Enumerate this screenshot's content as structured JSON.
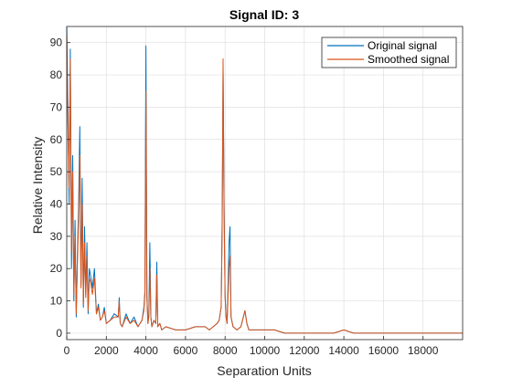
{
  "chart_data": {
    "type": "line",
    "title": "Signal ID: 3",
    "xlabel": "Separation Units",
    "ylabel": "Relative Intensity",
    "xlim": [
      0,
      20000
    ],
    "ylim": [
      -2,
      95
    ],
    "x_ticks": [
      0,
      2000,
      4000,
      6000,
      8000,
      10000,
      12000,
      14000,
      16000,
      18000
    ],
    "y_ticks": [
      0,
      10,
      20,
      30,
      40,
      50,
      60,
      70,
      80,
      90
    ],
    "x_tick_labels": [
      "0",
      "2000",
      "4000",
      "6000",
      "8000",
      "10000",
      "12000",
      "14000",
      "16000",
      "18000"
    ],
    "y_tick_labels": [
      "0",
      "10",
      "20",
      "30",
      "40",
      "50",
      "60",
      "70",
      "80",
      "90"
    ],
    "grid": true,
    "legend_position": "top-right",
    "series": [
      {
        "name": "Original signal",
        "color": "#0072BD",
        "x": [
          0,
          60,
          120,
          180,
          240,
          300,
          360,
          420,
          480,
          540,
          600,
          660,
          720,
          780,
          840,
          900,
          960,
          1020,
          1080,
          1140,
          1200,
          1300,
          1400,
          1500,
          1600,
          1700,
          1800,
          1900,
          2000,
          2200,
          2400,
          2600,
          2650,
          2700,
          2800,
          3000,
          3200,
          3400,
          3600,
          3800,
          3900,
          3950,
          4000,
          4050,
          4100,
          4150,
          4200,
          4250,
          4300,
          4400,
          4500,
          4550,
          4600,
          4700,
          4800,
          5000,
          5500,
          6000,
          6500,
          7000,
          7200,
          7400,
          7600,
          7700,
          7800,
          7850,
          7900,
          7950,
          8000,
          8050,
          8100,
          8200,
          8250,
          8300,
          8400,
          8600,
          8800,
          9000,
          9100,
          9200,
          9300,
          9500,
          10000,
          10500,
          11000,
          12000,
          13000,
          13500,
          14000,
          14500,
          15000,
          15500,
          16000,
          16500,
          17000,
          18000,
          19000,
          20000
        ],
        "values": [
          95,
          70,
          40,
          88,
          20,
          55,
          10,
          35,
          5,
          25,
          40,
          64,
          15,
          48,
          8,
          33,
          12,
          28,
          6,
          20,
          18,
          14,
          20,
          6,
          9,
          4,
          5,
          8,
          3,
          4,
          6,
          5,
          11,
          3,
          2,
          6,
          3,
          5,
          2,
          4,
          8,
          13,
          89,
          12,
          3,
          6,
          28,
          5,
          2,
          4,
          3,
          22,
          2,
          3,
          1,
          2,
          1,
          1,
          2,
          2,
          1,
          2,
          3,
          4,
          8,
          35,
          82,
          40,
          12,
          5,
          3,
          28,
          33,
          5,
          2,
          1,
          2,
          7,
          3,
          1,
          1,
          1,
          1,
          1,
          0,
          0,
          0,
          0,
          1,
          0,
          0,
          0,
          0,
          0,
          0,
          0,
          0,
          0
        ],
        "values_note": "approximate"
      },
      {
        "name": "Smoothed signal",
        "color": "#D95319",
        "x": [
          0,
          60,
          120,
          180,
          240,
          300,
          360,
          420,
          480,
          540,
          600,
          660,
          720,
          780,
          840,
          900,
          960,
          1020,
          1080,
          1140,
          1200,
          1300,
          1400,
          1500,
          1600,
          1700,
          1800,
          1900,
          2000,
          2200,
          2400,
          2600,
          2650,
          2700,
          2800,
          3000,
          3200,
          3400,
          3600,
          3800,
          3900,
          3950,
          4000,
          4050,
          4100,
          4150,
          4200,
          4250,
          4300,
          4400,
          4500,
          4550,
          4600,
          4700,
          4800,
          5000,
          5500,
          6000,
          6500,
          7000,
          7200,
          7400,
          7600,
          7700,
          7800,
          7850,
          7900,
          7950,
          8000,
          8050,
          8100,
          8200,
          8250,
          8300,
          8400,
          8600,
          8800,
          9000,
          9100,
          9200,
          9300,
          9500,
          10000,
          10500,
          11000,
          12000,
          13000,
          13500,
          14000,
          14500,
          15000,
          15500,
          16000,
          16500,
          17000,
          18000,
          19000,
          20000
        ],
        "values": [
          92,
          65,
          45,
          85,
          25,
          50,
          12,
          30,
          6,
          22,
          35,
          55,
          14,
          40,
          9,
          28,
          11,
          24,
          7,
          17,
          16,
          12,
          17,
          6,
          8,
          4,
          5,
          7,
          3,
          4,
          5,
          5,
          10,
          3,
          2,
          5,
          3,
          4,
          2,
          4,
          7,
          12,
          75,
          11,
          3,
          5,
          20,
          5,
          2,
          4,
          3,
          18,
          2,
          3,
          1,
          2,
          1,
          1,
          2,
          2,
          1,
          2,
          3,
          4,
          8,
          32,
          85,
          36,
          11,
          5,
          3,
          20,
          24,
          5,
          2,
          1,
          2,
          7,
          3,
          1,
          1,
          1,
          1,
          1,
          0,
          0,
          0,
          0,
          1,
          0,
          0,
          0,
          0,
          0,
          0,
          0,
          0,
          0
        ],
        "values_note": "approximate"
      }
    ]
  }
}
